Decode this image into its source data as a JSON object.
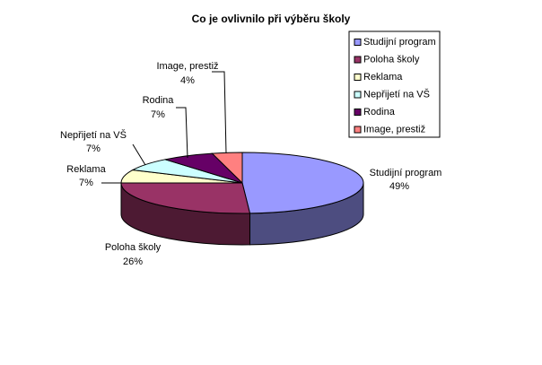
{
  "chart_data": {
    "type": "pie",
    "title": "Co je ovlivnilo při výběru školy",
    "categories": [
      "Studijní program",
      "Poloha školy",
      "Reklama",
      "Nepřijetí na VŠ",
      "Rodina",
      "Image, prestiž"
    ],
    "values": [
      49,
      26,
      7,
      7,
      7,
      4
    ],
    "value_labels": [
      "49%",
      "26%",
      "7%",
      "7%",
      "7%",
      "4%"
    ],
    "colors": [
      "#9999ff",
      "#993366",
      "#ffffcc",
      "#ccffff",
      "#660066",
      "#ff8080"
    ],
    "legend": "right"
  }
}
